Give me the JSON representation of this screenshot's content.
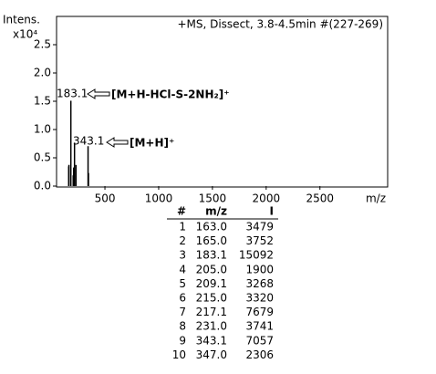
{
  "chart_data": {
    "type": "stem",
    "title": "+MS, Dissect, 3.8-4.5min #(227-269)",
    "y_label": "Intens.",
    "y_scale_label": "x10⁴",
    "x_label": "m/z",
    "x": [
      163.0,
      165.0,
      183.1,
      205.0,
      209.1,
      215.0,
      217.1,
      231.0,
      343.1,
      347.0
    ],
    "values": [
      3479,
      3752,
      15092,
      1900,
      3268,
      3320,
      7679,
      3741,
      7057,
      2306
    ],
    "color": "#000000",
    "xlim": [
      50,
      3130
    ],
    "xticks": [
      500,
      1000,
      1500,
      2000,
      2500
    ],
    "ylim": [
      0,
      30000
    ],
    "yticks": [
      {
        "value": 0,
        "label": "0.0"
      },
      {
        "value": 5000,
        "label": "0.5"
      },
      {
        "value": 10000,
        "label": "1.0"
      },
      {
        "value": 15000,
        "label": "1.5"
      },
      {
        "value": 20000,
        "label": "2.0"
      },
      {
        "value": 25000,
        "label": "2.5"
      }
    ],
    "annotations": [
      {
        "peak": "183.1",
        "text": "[M+H-HCl-S-2NH₂]⁺"
      },
      {
        "peak": "343.1",
        "text": "[M+H]⁺"
      }
    ]
  },
  "table": {
    "header": [
      "#",
      "m/z",
      "I"
    ],
    "rows": [
      [
        "1",
        "163.0",
        "3479"
      ],
      [
        "2",
        "165.0",
        "3752"
      ],
      [
        "3",
        "183.1",
        "15092"
      ],
      [
        "4",
        "205.0",
        "1900"
      ],
      [
        "5",
        "209.1",
        "3268"
      ],
      [
        "6",
        "215.0",
        "3320"
      ],
      [
        "7",
        "217.1",
        "7679"
      ],
      [
        "8",
        "231.0",
        "3741"
      ],
      [
        "9",
        "343.1",
        "7057"
      ],
      [
        "10",
        "347.0",
        "2306"
      ]
    ]
  }
}
